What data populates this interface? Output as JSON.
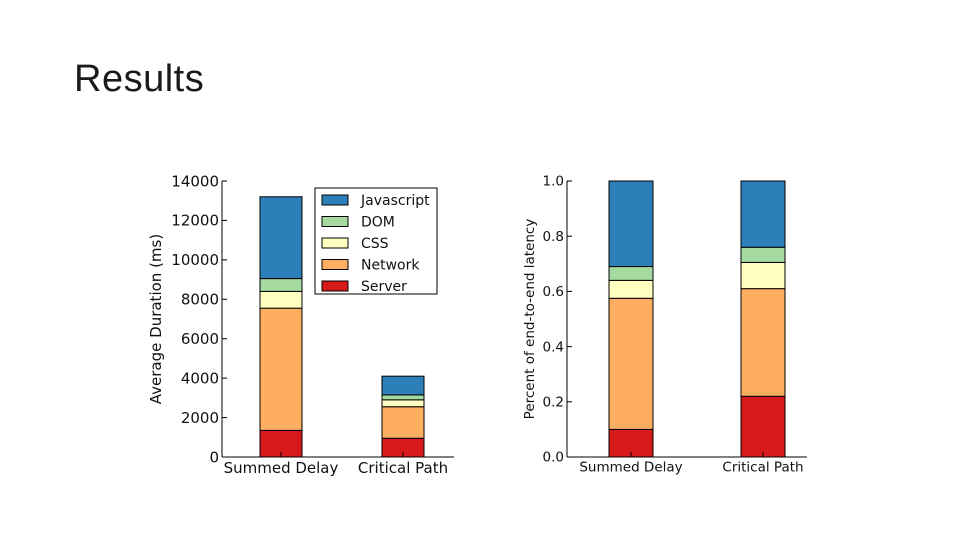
{
  "slide": {
    "title": "Results"
  },
  "colors": {
    "Javascript": "#2c7fb8",
    "DOM": "#a6dba0",
    "CSS": "#ffffbf",
    "Network": "#fdae61",
    "Server": "#d7191c"
  },
  "chart_data": [
    {
      "type": "bar",
      "stacked": true,
      "title": "",
      "xlabel": "",
      "ylabel": "Average Duration (ms)",
      "ylim": [
        0,
        14000
      ],
      "yticks": [
        "0",
        "2000",
        "4000",
        "6000",
        "8000",
        "10000",
        "12000",
        "14000"
      ],
      "categories": [
        "Summed Delay",
        "Critical Path"
      ],
      "legend": {
        "location": "top-right",
        "order": [
          "Javascript",
          "DOM",
          "CSS",
          "Network",
          "Server"
        ]
      },
      "series": [
        {
          "name": "Server",
          "values": [
            1350,
            950
          ]
        },
        {
          "name": "Network",
          "values": [
            6200,
            1600
          ]
        },
        {
          "name": "CSS",
          "values": [
            850,
            350
          ]
        },
        {
          "name": "DOM",
          "values": [
            650,
            250
          ]
        },
        {
          "name": "Javascript",
          "values": [
            4150,
            950
          ]
        }
      ]
    },
    {
      "type": "bar",
      "stacked": true,
      "title": "",
      "xlabel": "",
      "ylabel": "Percent of end-to-end latency",
      "ylim": [
        0,
        1.0
      ],
      "yticks": [
        "0.0",
        "0.2",
        "0.4",
        "0.6",
        "0.8",
        "1.0"
      ],
      "categories": [
        "Summed Delay",
        "Critical Path"
      ],
      "series": [
        {
          "name": "Server",
          "values": [
            0.1,
            0.22
          ]
        },
        {
          "name": "Network",
          "values": [
            0.475,
            0.39
          ]
        },
        {
          "name": "CSS",
          "values": [
            0.065,
            0.095
          ]
        },
        {
          "name": "DOM",
          "values": [
            0.05,
            0.055
          ]
        },
        {
          "name": "Javascript",
          "values": [
            0.31,
            0.24
          ]
        }
      ]
    }
  ]
}
